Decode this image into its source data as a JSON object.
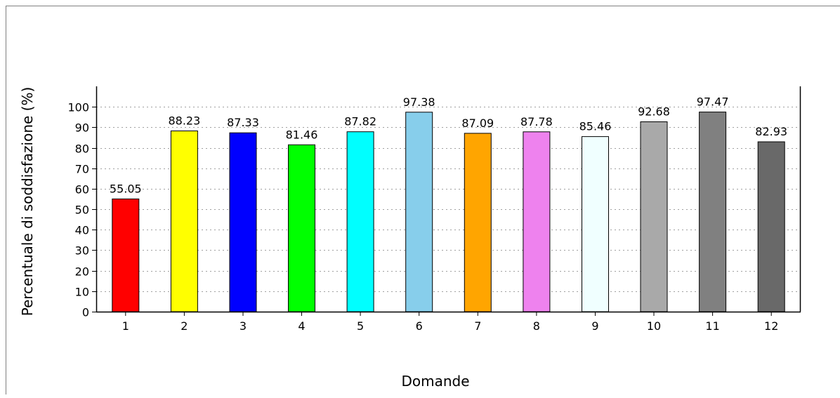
{
  "chart_data": {
    "type": "bar",
    "title": "",
    "xlabel": "Domande",
    "ylabel": "Percentuale di soddisfazione (%)",
    "categories": [
      "1",
      "2",
      "3",
      "4",
      "5",
      "6",
      "7",
      "8",
      "9",
      "10",
      "11",
      "12"
    ],
    "values": [
      55.05,
      88.23,
      87.33,
      81.46,
      87.82,
      97.38,
      87.09,
      87.78,
      85.46,
      92.68,
      97.47,
      82.93
    ],
    "value_labels": [
      "55.05",
      "88.23",
      "87.33",
      "81.46",
      "87.82",
      "97.38",
      "87.09",
      "87.78",
      "85.46",
      "92.68",
      "97.47",
      "82.93"
    ],
    "colors": [
      "#ff0000",
      "#ffff00",
      "#0000ff",
      "#00ff00",
      "#00ffff",
      "#87ceeb",
      "#ffa500",
      "#ee82ee",
      "#f0ffff",
      "#a9a9a9",
      "#808080",
      "#696969"
    ],
    "ylim": [
      0,
      110
    ],
    "yticks": [
      "0",
      "10",
      "20",
      "30",
      "40",
      "50",
      "60",
      "70",
      "80",
      "90",
      "100"
    ],
    "grid": "horizontal-dashed",
    "legend": "none"
  }
}
